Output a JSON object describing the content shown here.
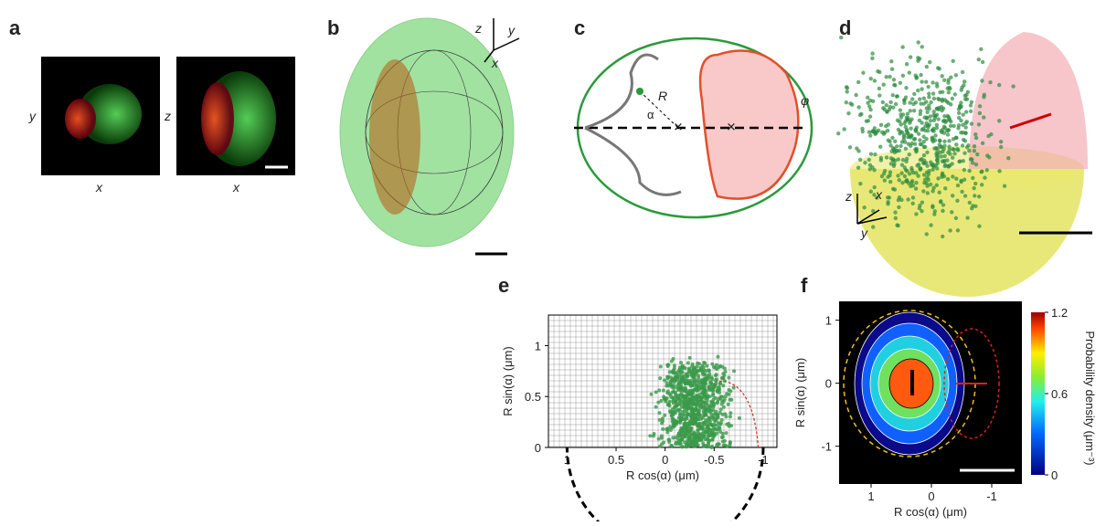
{
  "panels": {
    "a": {
      "label": "a",
      "axis_labels": [
        "y",
        "x",
        "z",
        "x"
      ]
    },
    "b": {
      "label": "b",
      "axes": [
        "z",
        "y",
        "x"
      ]
    },
    "c": {
      "label": "c",
      "symbols": [
        "R",
        "α",
        "φ"
      ]
    },
    "d": {
      "label": "d",
      "axes": [
        "z",
        "x",
        "y"
      ]
    },
    "e": {
      "label": "e",
      "xlabel": "R cos(α) (μm)",
      "ylabel": "R sin(α) (μm)",
      "xlim": [
        1.19,
        -1.14
      ],
      "xticks": [
        1,
        0.5,
        0,
        -0.5,
        -1
      ],
      "ylim": [
        0,
        1.3
      ],
      "yticks": [
        0,
        0.5,
        1
      ]
    },
    "f": {
      "label": "f",
      "xlabel": "R cos(α) (μm)",
      "ylabel": "R sin(α) (μm)",
      "xlim": [
        1.53,
        -1.5
      ],
      "xticks": [
        1,
        0,
        -1
      ],
      "ylim": [
        -1.6,
        1.3
      ],
      "yticks": [
        -1,
        0,
        1
      ],
      "colorbar_label": "Probability density (μm⁻³)",
      "colorbar_lim": [
        0,
        1.2
      ],
      "colorbar_ticks": [
        0,
        0.6,
        1.2
      ]
    }
  }
}
